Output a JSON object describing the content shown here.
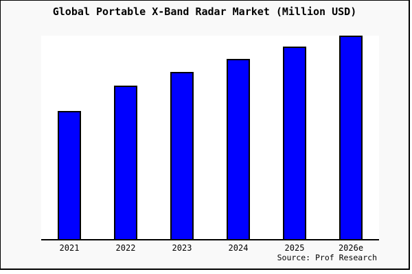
{
  "page": {
    "background": "#f9f9f9",
    "frame_border_color": "#000000"
  },
  "chart_data": {
    "type": "bar",
    "title": "Global Portable X-Band Radar Market (Million USD)",
    "categories": [
      "2021",
      "2022",
      "2023",
      "2024",
      "2025",
      "2026e"
    ],
    "values": [
      63,
      75.5,
      82,
      88.5,
      94.5,
      100
    ],
    "values_note": "no y-axis ticks or data labels are rendered; values are relative bar heights with 2026e = 100",
    "xlabel": "",
    "ylabel": "",
    "ylim": [
      0,
      100
    ],
    "y_ticks": [],
    "grid": false,
    "legend": false,
    "bar_color": "#0000ff",
    "bar_border_color": "#000000",
    "plot_background": "#ffffff",
    "axis_color": "#000000",
    "text_color": "#000000"
  },
  "footer": {
    "source_label": "Source: Prof Research"
  }
}
